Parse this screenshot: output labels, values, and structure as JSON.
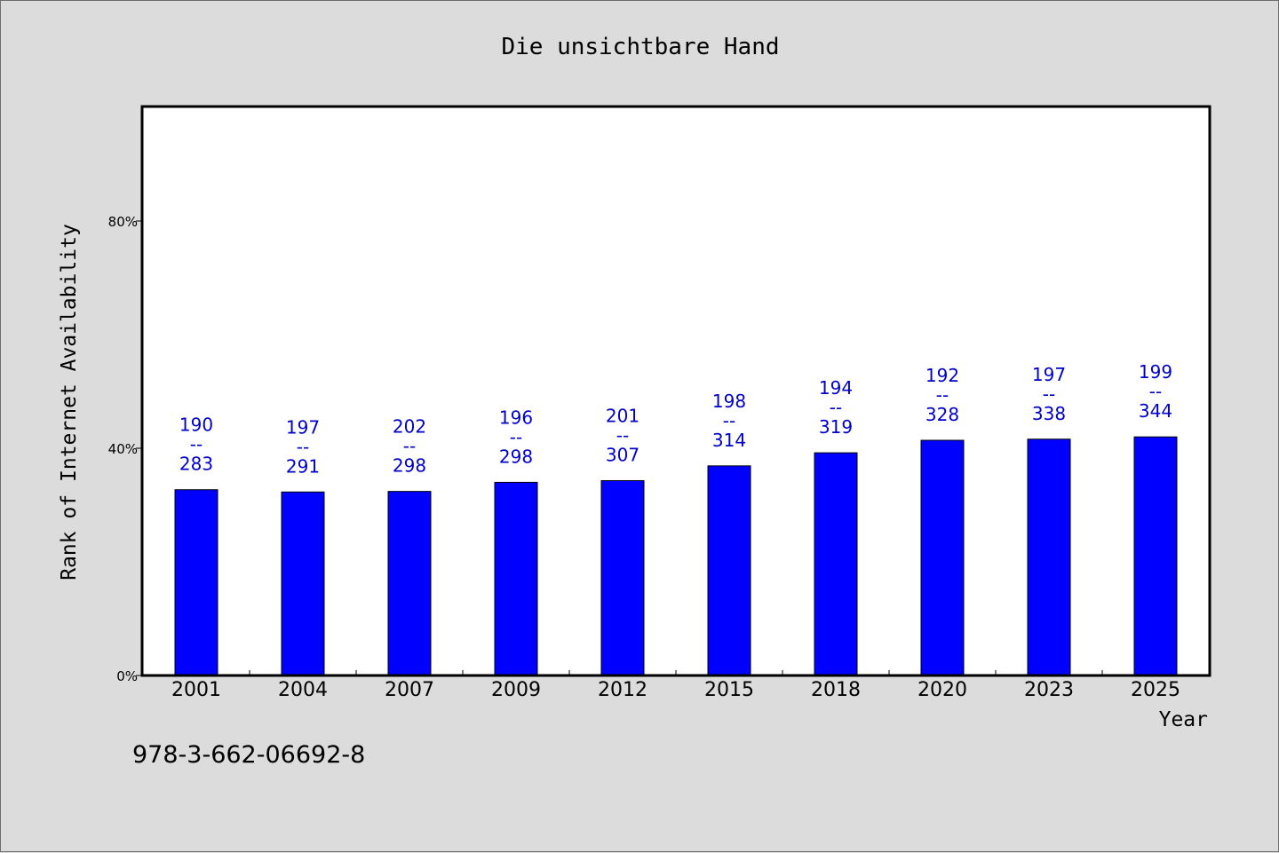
{
  "footnote": "978-3-662-06692-8",
  "colors": {
    "background": "#dcdcdc",
    "plot_background": "#ffffff",
    "bar": "#0000ff",
    "label": "#0000cc"
  },
  "chart_data": {
    "type": "bar",
    "title": "Die unsichtbare Hand",
    "xlabel": "Year",
    "ylabel": "Rank of Internet Availability",
    "ylim": [
      0,
      100
    ],
    "yticks": [
      0,
      40,
      80
    ],
    "ytick_labels": [
      "0%",
      "40%",
      "80%"
    ],
    "grid": false,
    "categories": [
      "2001",
      "2004",
      "2007",
      "2009",
      "2012",
      "2015",
      "2018",
      "2020",
      "2023",
      "2025"
    ],
    "values": [
      32.7,
      32.3,
      32.4,
      34.0,
      34.3,
      36.9,
      39.2,
      41.4,
      41.6,
      42.0
    ],
    "data_labels": [
      [
        "190",
        "--",
        "283"
      ],
      [
        "197",
        "--",
        "291"
      ],
      [
        "202",
        "--",
        "298"
      ],
      [
        "196",
        "--",
        "298"
      ],
      [
        "201",
        "--",
        "307"
      ],
      [
        "198",
        "--",
        "314"
      ],
      [
        "194",
        "--",
        "319"
      ],
      [
        "192",
        "--",
        "328"
      ],
      [
        "197",
        "--",
        "338"
      ],
      [
        "199",
        "--",
        "344"
      ]
    ]
  }
}
